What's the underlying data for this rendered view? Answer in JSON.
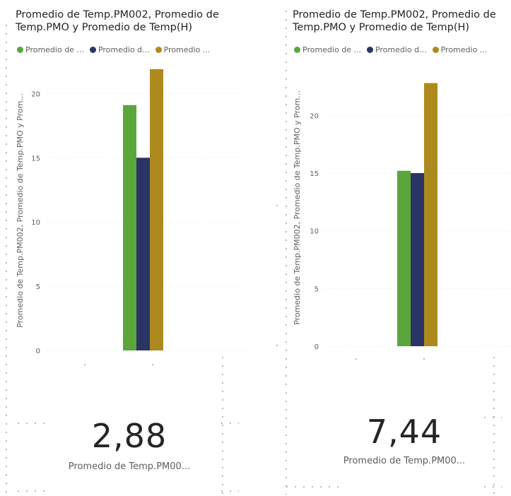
{
  "colors": {
    "green": "#5aa63b",
    "navy": "#2a3566",
    "gold": "#ac8a1e"
  },
  "panels": [
    {
      "title": "Promedio de Temp.PM002, Promedio de Temp.PMO y Promedio de Temp(H)",
      "legend": [
        "Promedio de ...",
        "Promedio d...",
        "Promedio ..."
      ],
      "kpi_value": "2,88",
      "kpi_label": "Promedio de Temp.PM00..."
    },
    {
      "title": "Promedio de Temp.PM002, Promedio de Temp.PMO y Promedio de Temp(H)",
      "legend": [
        "Promedio de ...",
        "Promedio d...",
        "Promedio ..."
      ],
      "kpi_value": "7,44",
      "kpi_label": "Promedio de Temp.PM00..."
    }
  ],
  "chart_data": [
    {
      "type": "bar",
      "title": "Promedio de Temp.PM002, Promedio de Temp.PMO y Promedio de Temp(H)",
      "ylabel": "Promedio de Temp.PM002, Promedio de Temp.PMO y Prom...",
      "yticks": [
        "0",
        "5",
        "10",
        "15",
        "20"
      ],
      "ylim": [
        0,
        22
      ],
      "grid": true,
      "legend_position": "top-left",
      "series": [
        {
          "name": "Promedio de ...",
          "values": [
            19.1
          ],
          "color": "#5aa63b"
        },
        {
          "name": "Promedio d...",
          "values": [
            15.0
          ],
          "color": "#2a3566"
        },
        {
          "name": "Promedio ...",
          "values": [
            21.9
          ],
          "color": "#ac8a1e"
        }
      ]
    },
    {
      "type": "bar",
      "title": "Promedio de Temp.PM002, Promedio de Temp.PMO y Promedio de Temp(H)",
      "ylabel": "Promedio de Temp.PM002, Promedio de Temp.PMO y Prom...",
      "yticks": [
        "0",
        "5",
        "10",
        "15",
        "20"
      ],
      "ylim": [
        0,
        24
      ],
      "grid": true,
      "legend_position": "top-left",
      "series": [
        {
          "name": "Promedio de ...",
          "values": [
            15.2
          ],
          "color": "#5aa63b"
        },
        {
          "name": "Promedio d...",
          "values": [
            15.0
          ],
          "color": "#2a3566"
        },
        {
          "name": "Promedio ...",
          "values": [
            22.8
          ],
          "color": "#ac8a1e"
        }
      ]
    }
  ]
}
